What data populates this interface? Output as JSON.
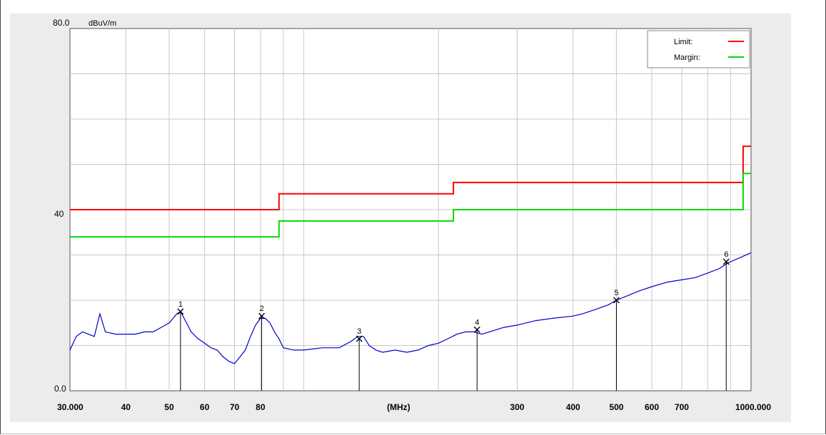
{
  "chart_data": {
    "type": "line",
    "y_top_label": "80.0",
    "y_mid_label": "40",
    "y_bottom_label": "0.0",
    "unit_label": "dBuV/m",
    "xlabel": "(MHz)",
    "x_scale": "log",
    "xlim": [
      30,
      1000
    ],
    "ylim": [
      0,
      80
    ],
    "x_tick_labels": [
      {
        "value": 30,
        "label": "30.000"
      },
      {
        "value": 40,
        "label": "40"
      },
      {
        "value": 50,
        "label": "50"
      },
      {
        "value": 60,
        "label": "60"
      },
      {
        "value": 70,
        "label": "70"
      },
      {
        "value": 80,
        "label": "80"
      },
      {
        "value": 300,
        "label": "300"
      },
      {
        "value": 400,
        "label": "400"
      },
      {
        "value": 500,
        "label": "500"
      },
      {
        "value": 600,
        "label": "600"
      },
      {
        "value": 700,
        "label": "700"
      },
      {
        "value": 1000,
        "label": "1000.000"
      }
    ],
    "grid": true,
    "legend_position": "top-right",
    "legend": [
      {
        "label": "Limit:",
        "color": "#ff0000"
      },
      {
        "label": "Margin:",
        "color": "#00dd00"
      }
    ],
    "limit_line": {
      "color": "#ff0000",
      "points": [
        [
          30,
          40
        ],
        [
          88,
          40
        ],
        [
          88,
          43.5
        ],
        [
          216,
          43.5
        ],
        [
          216,
          46
        ],
        [
          960,
          46
        ],
        [
          960,
          54
        ],
        [
          1000,
          54
        ]
      ]
    },
    "margin_line": {
      "color": "#00dd00",
      "points": [
        [
          30,
          34
        ],
        [
          88,
          34
        ],
        [
          88,
          37.5
        ],
        [
          216,
          37.5
        ],
        [
          216,
          40
        ],
        [
          960,
          40
        ],
        [
          960,
          48
        ],
        [
          1000,
          48
        ]
      ]
    },
    "measurement_series": {
      "color": "#0000cc",
      "points": [
        [
          30,
          9
        ],
        [
          31,
          12
        ],
        [
          32,
          13
        ],
        [
          33,
          12.5
        ],
        [
          34,
          12
        ],
        [
          35,
          17
        ],
        [
          36,
          13
        ],
        [
          38,
          12.5
        ],
        [
          40,
          12.5
        ],
        [
          42,
          12.5
        ],
        [
          44,
          13
        ],
        [
          46,
          13
        ],
        [
          48,
          14
        ],
        [
          50,
          15
        ],
        [
          51,
          16
        ],
        [
          52,
          17
        ],
        [
          53,
          17.5
        ],
        [
          54,
          16
        ],
        [
          56,
          13
        ],
        [
          58,
          11.5
        ],
        [
          60,
          10.5
        ],
        [
          62,
          9.5
        ],
        [
          64,
          9
        ],
        [
          66,
          7.5
        ],
        [
          68,
          6.5
        ],
        [
          70,
          6
        ],
        [
          72,
          7.5
        ],
        [
          74,
          9
        ],
        [
          76,
          12
        ],
        [
          78,
          14.5
        ],
        [
          80,
          16
        ],
        [
          82,
          16
        ],
        [
          84,
          15
        ],
        [
          86,
          13
        ],
        [
          88,
          11.5
        ],
        [
          90,
          9.5
        ],
        [
          95,
          9
        ],
        [
          100,
          9
        ],
        [
          110,
          9.5
        ],
        [
          120,
          9.5
        ],
        [
          128,
          11
        ],
        [
          132,
          12
        ],
        [
          136,
          12
        ],
        [
          140,
          10
        ],
        [
          145,
          9
        ],
        [
          150,
          8.5
        ],
        [
          160,
          9
        ],
        [
          170,
          8.5
        ],
        [
          180,
          9
        ],
        [
          190,
          10
        ],
        [
          200,
          10.5
        ],
        [
          210,
          11.5
        ],
        [
          220,
          12.5
        ],
        [
          230,
          13
        ],
        [
          240,
          13
        ],
        [
          250,
          12.5
        ],
        [
          260,
          13
        ],
        [
          280,
          14
        ],
        [
          300,
          14.5
        ],
        [
          330,
          15.5
        ],
        [
          360,
          16
        ],
        [
          400,
          16.5
        ],
        [
          420,
          17
        ],
        [
          450,
          18
        ],
        [
          480,
          19
        ],
        [
          500,
          20
        ],
        [
          530,
          21
        ],
        [
          560,
          22
        ],
        [
          600,
          23
        ],
        [
          650,
          24
        ],
        [
          700,
          24.5
        ],
        [
          750,
          25
        ],
        [
          800,
          26
        ],
        [
          850,
          27
        ],
        [
          880,
          28
        ],
        [
          900,
          28.5
        ],
        [
          950,
          29.5
        ],
        [
          1000,
          30.5
        ]
      ]
    },
    "markers": [
      {
        "label": "1",
        "x": 53,
        "y": 17.5
      },
      {
        "label": "2",
        "x": 80.5,
        "y": 16.5
      },
      {
        "label": "3",
        "x": 133,
        "y": 11.5
      },
      {
        "label": "4",
        "x": 244,
        "y": 13.5
      },
      {
        "label": "5",
        "x": 500,
        "y": 20
      },
      {
        "label": "6",
        "x": 880,
        "y": 28.5
      }
    ]
  }
}
